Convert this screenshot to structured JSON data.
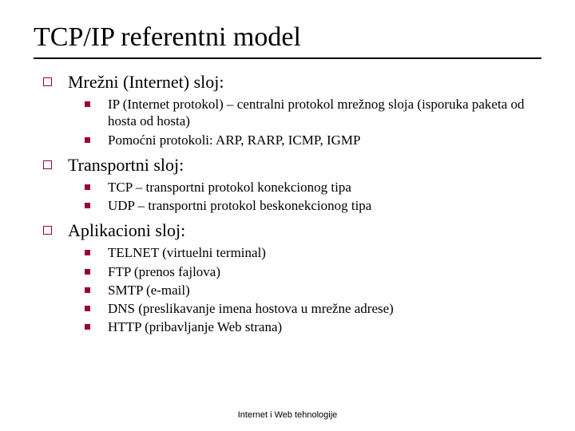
{
  "title": "TCP/IP referentni model",
  "colors": {
    "bullet": "#990033",
    "text": "#000000",
    "background": "#ffffff",
    "rule": "#000000"
  },
  "typography": {
    "title_fontsize": 34,
    "section_fontsize": 22,
    "item_fontsize": 17,
    "footer_fontsize": 11,
    "family": "Times New Roman"
  },
  "sections": [
    {
      "heading": "Mrežni (Internet) sloj:",
      "items": [
        "IP (Internet protokol) – centralni protokol mrežnog sloja (isporuka paketa od hosta od hosta)",
        "Pomoćni protokoli: ARP, RARP, ICMP, IGMP"
      ]
    },
    {
      "heading": "Transportni sloj:",
      "items": [
        "TCP – transportni protokol konekcionog tipa",
        "UDP – transportni protokol beskonekcionog tipa"
      ]
    },
    {
      "heading": "Aplikacioni sloj:",
      "items": [
        "TELNET (virtuelni terminal)",
        "FTP (prenos fajlova)",
        "SMTP (e-mail)",
        "DNS (preslikavanje imena hostova u mrežne adrese)",
        "HTTP (pribavljanje Web strana)"
      ]
    }
  ],
  "footer": "Internet i Web tehnologije"
}
